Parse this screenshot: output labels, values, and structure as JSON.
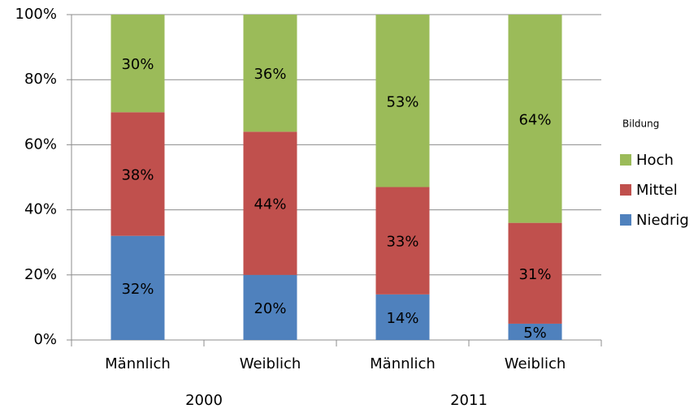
{
  "chart_data": {
    "type": "stacked_bar",
    "categories": [
      "Männlich",
      "Weiblich",
      "Männlich",
      "Weiblich"
    ],
    "groups": [
      "2000",
      "2011"
    ],
    "legend_title": "Bildung",
    "legend": "right",
    "grid": true,
    "ylim": [
      0,
      100
    ],
    "yticks": [
      {
        "value": 0,
        "label": "0%"
      },
      {
        "value": 20,
        "label": "20%"
      },
      {
        "value": 40,
        "label": "40%"
      },
      {
        "value": 60,
        "label": "60%"
      },
      {
        "value": 80,
        "label": "80%"
      },
      {
        "value": 100,
        "label": "100%"
      }
    ],
    "series": [
      {
        "name": "Niedrig",
        "color": "#4f81bd",
        "values": [
          32,
          20,
          14,
          5
        ],
        "value_labels": [
          "32%",
          "20%",
          "14%",
          "5%"
        ]
      },
      {
        "name": "Mittel",
        "color": "#c0504d",
        "values": [
          38,
          44,
          33,
          31
        ],
        "value_labels": [
          "38%",
          "44%",
          "33%",
          "31%"
        ]
      },
      {
        "name": "Hoch",
        "color": "#9bbb59",
        "values": [
          30,
          36,
          53,
          64
        ],
        "value_labels": [
          "30%",
          "36%",
          "53%",
          "64%"
        ]
      }
    ]
  }
}
